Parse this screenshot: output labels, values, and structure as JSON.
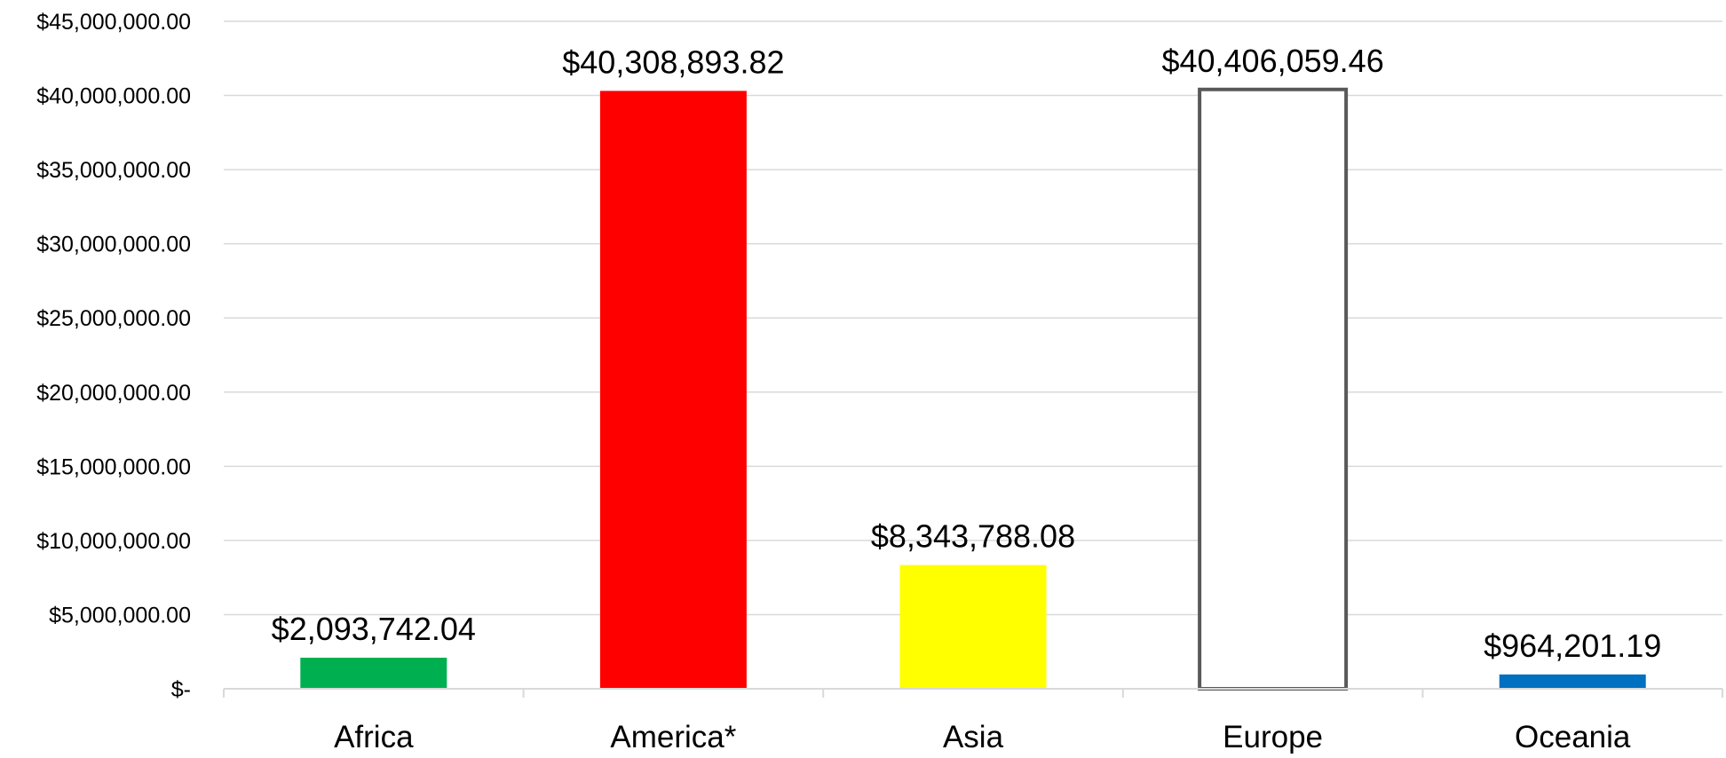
{
  "chart_data": {
    "type": "bar",
    "title": "",
    "xlabel": "",
    "ylabel": "",
    "categories": [
      "Africa",
      "America*",
      "Asia",
      "Europe",
      "Oceania"
    ],
    "values": [
      2093742.04,
      40308893.82,
      8343788.08,
      40406059.46,
      964201.19
    ],
    "data_labels": [
      "$2,093,742.04",
      "$40,308,893.82",
      "$8,343,788.08",
      "$40,406,059.46",
      "$964,201.19"
    ],
    "ylim": [
      0,
      45000000
    ],
    "yticks": [
      0,
      5000000,
      10000000,
      15000000,
      20000000,
      25000000,
      30000000,
      35000000,
      40000000,
      45000000
    ],
    "ytick_labels": [
      "$-",
      "$5,000,000.00",
      "$10,000,000.00",
      "$15,000,000.00",
      "$20,000,000.00",
      "$25,000,000.00",
      "$30,000,000.00",
      "$35,000,000.00",
      "$40,000,000.00",
      "$45,000,000.00"
    ],
    "bar_fill_colors": [
      "#00b050",
      "#ff0000",
      "#ffff00",
      "#ffffff",
      "#0070c0"
    ],
    "bar_outline_colors": [
      "none",
      "none",
      "none",
      "#595959",
      "none"
    ],
    "grid": true,
    "gridline_color": "#d9d9d9",
    "legend": "none"
  }
}
